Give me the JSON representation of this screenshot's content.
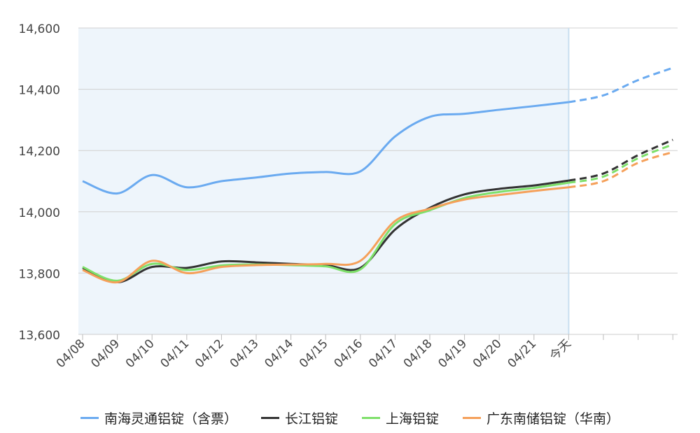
{
  "chart_data": {
    "type": "line",
    "categories": [
      "04/08",
      "04/09",
      "04/10",
      "04/11",
      "04/12",
      "04/13",
      "04/14",
      "04/15",
      "04/16",
      "04/17",
      "04/18",
      "04/19",
      "04/20",
      "04/21",
      "今天",
      "",
      "",
      ""
    ],
    "today_index": 14,
    "ylim": [
      13600,
      14600
    ],
    "yticks": [
      13600,
      13800,
      14000,
      14200,
      14400,
      14600
    ],
    "ytick_labels": [
      "13,600",
      "13,800",
      "14,000",
      "14,200",
      "14,400",
      "14,600"
    ],
    "grid": true,
    "legend_position": "bottom",
    "forecast_style": "dashed after 今天",
    "history_background": "#eef5fb",
    "series": [
      {
        "name": "南海灵通铝锭（含票）",
        "color": "#6aaaf0",
        "values": [
          14100,
          14060,
          14120,
          14080,
          14100,
          14112,
          14125,
          14130,
          14132,
          14246,
          14310,
          14320,
          14333,
          14345,
          14358,
          14380,
          14430,
          14470
        ]
      },
      {
        "name": "长江铝锭",
        "color": "#333333",
        "values": [
          13817,
          13770,
          13820,
          13817,
          13838,
          13835,
          13830,
          13826,
          13817,
          13942,
          14013,
          14057,
          14075,
          14086,
          14102,
          14125,
          14185,
          14235
        ]
      },
      {
        "name": "上海铝锭",
        "color": "#7ee06a",
        "values": [
          13820,
          13775,
          13830,
          13810,
          13825,
          13828,
          13826,
          13822,
          13812,
          13960,
          14005,
          14045,
          14065,
          14078,
          14095,
          14115,
          14175,
          14220
        ]
      },
      {
        "name": "广东南储铝锭（华南）",
        "color": "#f5a05a",
        "values": [
          13810,
          13770,
          13840,
          13800,
          13820,
          13826,
          13828,
          13830,
          13840,
          13970,
          14010,
          14040,
          14055,
          14068,
          14080,
          14100,
          14160,
          14195
        ]
      }
    ]
  }
}
